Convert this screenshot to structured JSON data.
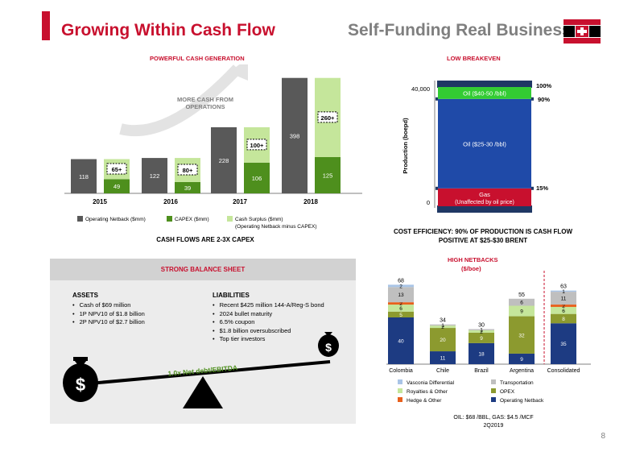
{
  "header": {
    "title_left": "Growing Within Cash Flow",
    "title_right": "Self-Funding Real Business"
  },
  "colors": {
    "red": "#c8102e",
    "dark_gray": "#595959",
    "green": "#4e8f1d",
    "light_green": "#c5e69b",
    "blue": "#1f4aa8",
    "dark_blue": "#1d3b82",
    "olive": "#8c9a2f",
    "light_gray": "#bfbfbf"
  },
  "left_chart": {
    "heading": "POWERFUL CASH GENERATION",
    "arrow_label": "MORE CASH FROM OPERATIONS",
    "caption": "CASH FLOWS ARE 2-3X CAPEX",
    "legend": {
      "netback": "Operating Netback ($mm)",
      "capex": "CAPEX ($mm)",
      "surplus": "Cash Surplus ($mm)",
      "surplus_note": "(Operating Netback minus CAPEX)"
    }
  },
  "breakeven": {
    "heading": "LOW BREAKEVEN",
    "ylabel": "Production (boepd)",
    "y_top_label": "40,000",
    "y_bottom_label": "0",
    "seg_top": "Oil ($40-50 /bbl)",
    "seg_mid": "Oil ($25-30 /bbl)",
    "seg_gas": "Gas",
    "seg_gas_note": "(Unaffected by oil price)",
    "pct_100": "100%",
    "pct_90": "90%",
    "pct_15": "15%",
    "caption": "COST EFFICIENCY: 90% OF PRODUCTION IS CASH FLOW POSITIVE AT $25-$30 BRENT"
  },
  "balance": {
    "heading": "STRONG BALANCE SHEET",
    "assets_title": "ASSETS",
    "assets": [
      "Cash of $69 million",
      "1P NPV10 of $1.8 billion",
      "2P NPV10 of $2.7 billion"
    ],
    "liabilities_title": "LIABILITIES",
    "liabilities": [
      "Recent $425 million 144-A/Reg-S bond",
      "2024 bullet maturity",
      "6.5% coupon",
      "$1.8 billion oversubscribed",
      "Top tier investors"
    ],
    "seesaw_label": "1.0x Net debt/EBITDA",
    "dollar": "$"
  },
  "netbacks": {
    "heading": "HIGH NETBACKS",
    "subheading": "($/boe)",
    "legend": {
      "vasconia": "Vasconia Differential",
      "transport": "Transportation",
      "royalties": "Royalties & Other",
      "opex": "OPEX",
      "hedge": "Hedge & Other",
      "netback": "Operating Netback"
    },
    "footnote1": "OIL: $68 /BBL, GAS: $4.5 /MCF",
    "footnote2": "2Q2019"
  },
  "page_number": "8",
  "chart_data": [
    {
      "type": "bar",
      "categories": [
        "2015",
        "2016",
        "2017",
        "2018"
      ],
      "series": [
        {
          "name": "Operating Netback ($mm)",
          "values": [
            118,
            122,
            228,
            398
          ]
        },
        {
          "name": "CAPEX ($mm)",
          "values": [
            49,
            39,
            106,
            125
          ]
        },
        {
          "name": "Cash Surplus ($mm)",
          "values": [
            69,
            83,
            122,
            273
          ]
        }
      ],
      "surplus_labels": [
        "65+",
        "80+",
        "100+",
        "260+"
      ],
      "title": "POWERFUL CASH GENERATION",
      "ylim": [
        0,
        420
      ]
    },
    {
      "type": "bar",
      "categories": [
        "Production"
      ],
      "segments": [
        {
          "name": "Gas",
          "from": 0,
          "to": 15
        },
        {
          "name": "Oil ($25-30 /bbl)",
          "from": 15,
          "to": 90
        },
        {
          "name": "Oil ($40-50 /bbl)",
          "from": 90,
          "to": 100
        }
      ],
      "title": "LOW BREAKEVEN",
      "ylabel": "Production (boepd)",
      "ylim": [
        0,
        40000
      ]
    },
    {
      "type": "bar",
      "stacked": true,
      "categories": [
        "Colombia",
        "Chile",
        "Brazil",
        "Argentina",
        "Consolidated"
      ],
      "totals": [
        68,
        34,
        30,
        55,
        63
      ],
      "series": [
        {
          "name": "Operating Netback",
          "values": [
            40,
            11,
            18,
            9,
            35
          ]
        },
        {
          "name": "OPEX",
          "values": [
            5,
            20,
            9,
            32,
            8
          ]
        },
        {
          "name": "Royalties & Other",
          "values": [
            6,
            2,
            2,
            9,
            6
          ]
        },
        {
          "name": "Hedge & Other",
          "values": [
            2,
            0,
            0,
            0,
            2
          ]
        },
        {
          "name": "Transportation",
          "values": [
            13,
            1,
            1,
            6,
            11
          ]
        },
        {
          "name": "Vasconia Differential",
          "values": [
            2,
            0,
            0,
            0,
            1
          ]
        }
      ],
      "title": "HIGH NETBACKS",
      "ylim": [
        0,
        75
      ]
    }
  ]
}
